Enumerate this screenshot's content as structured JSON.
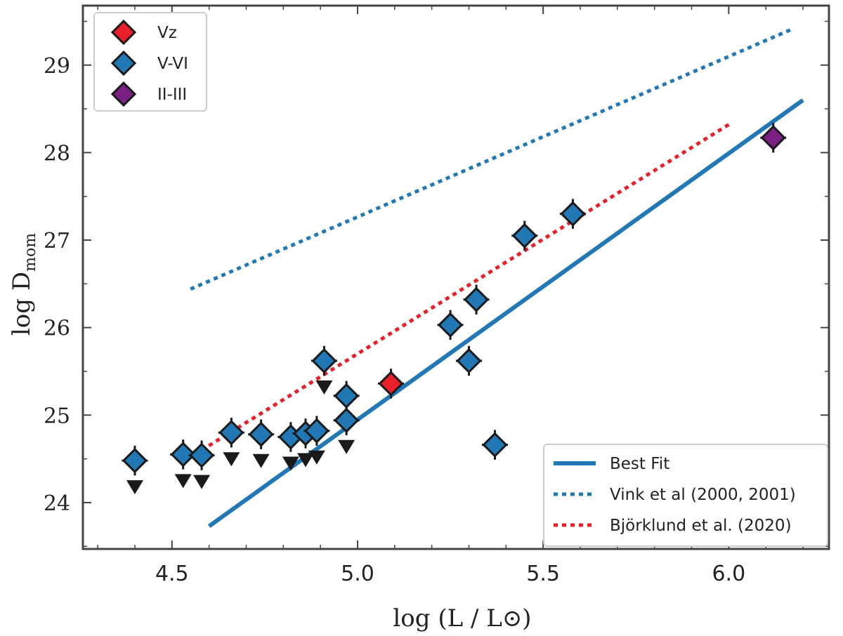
{
  "chart_data": {
    "type": "scatter",
    "title": "",
    "xlabel": "log (L / L⊙)",
    "ylabel_main": "log D",
    "ylabel_sub": "mom",
    "xlim": [
      4.26,
      6.27
    ],
    "ylim": [
      23.47,
      29.68
    ],
    "xticks": [
      "4.5",
      "5.0",
      "5.5",
      "6.0"
    ],
    "yticks": [
      "24",
      "25",
      "26",
      "27",
      "28",
      "29"
    ],
    "xerr": 0.035,
    "yerr": 0.17,
    "colors": {
      "Vz": "#e8202a",
      "V-VI": "#2178b4",
      "II-III": "#7b1f82",
      "vink": "#2178b4",
      "bjorklund": "#e8202a",
      "fit": "#2178b4",
      "marker_edge": "#1a1a1a"
    },
    "points": [
      {
        "cls": "V-VI",
        "x": 4.4,
        "y": 24.48,
        "upper_limit": true
      },
      {
        "cls": "V-VI",
        "x": 4.53,
        "y": 24.55,
        "upper_limit": true
      },
      {
        "cls": "V-VI",
        "x": 4.58,
        "y": 24.54,
        "upper_limit": true
      },
      {
        "cls": "V-VI",
        "x": 4.66,
        "y": 24.8,
        "upper_limit": true
      },
      {
        "cls": "V-VI",
        "x": 4.74,
        "y": 24.78,
        "upper_limit": true
      },
      {
        "cls": "V-VI",
        "x": 4.82,
        "y": 24.75,
        "upper_limit": true
      },
      {
        "cls": "V-VI",
        "x": 4.86,
        "y": 24.79,
        "upper_limit": true
      },
      {
        "cls": "V-VI",
        "x": 4.89,
        "y": 24.82,
        "upper_limit": true
      },
      {
        "cls": "V-VI",
        "x": 4.91,
        "y": 25.62,
        "upper_limit": true
      },
      {
        "cls": "V-VI",
        "x": 4.97,
        "y": 25.22,
        "upper_limit": true
      },
      {
        "cls": "V-VI",
        "x": 4.97,
        "y": 24.94,
        "upper_limit": true
      },
      {
        "cls": "Vz",
        "x": 5.09,
        "y": 25.36,
        "upper_limit": false
      },
      {
        "cls": "V-VI",
        "x": 5.25,
        "y": 26.03,
        "upper_limit": false
      },
      {
        "cls": "V-VI",
        "x": 5.3,
        "y": 25.62,
        "upper_limit": false
      },
      {
        "cls": "V-VI",
        "x": 5.32,
        "y": 26.32,
        "upper_limit": false
      },
      {
        "cls": "V-VI",
        "x": 5.37,
        "y": 24.66,
        "upper_limit": false
      },
      {
        "cls": "V-VI",
        "x": 5.45,
        "y": 27.05,
        "upper_limit": false
      },
      {
        "cls": "V-VI",
        "x": 5.58,
        "y": 27.3,
        "upper_limit": false
      },
      {
        "cls": "II-III",
        "x": 6.12,
        "y": 28.17,
        "upper_limit": false
      }
    ],
    "lines": [
      {
        "name": "Best Fit",
        "style": "solid",
        "x": [
          4.6,
          6.2
        ],
        "y": [
          23.73,
          28.6
        ]
      },
      {
        "name": "Vink et al (2000, 2001)",
        "style": "dotted",
        "x": [
          4.55,
          6.17
        ],
        "y": [
          26.44,
          29.41
        ]
      },
      {
        "name": "Björklund et al. (2020)",
        "style": "dotted",
        "x": [
          4.58,
          6.0
        ],
        "y": [
          24.6,
          28.32
        ]
      }
    ],
    "legend_markers": [
      "Vz",
      "V-VI",
      "II-III"
    ],
    "legend_lines": [
      "Best Fit",
      "Vink et al (2000, 2001)",
      "Björklund et al. (2020)"
    ]
  }
}
